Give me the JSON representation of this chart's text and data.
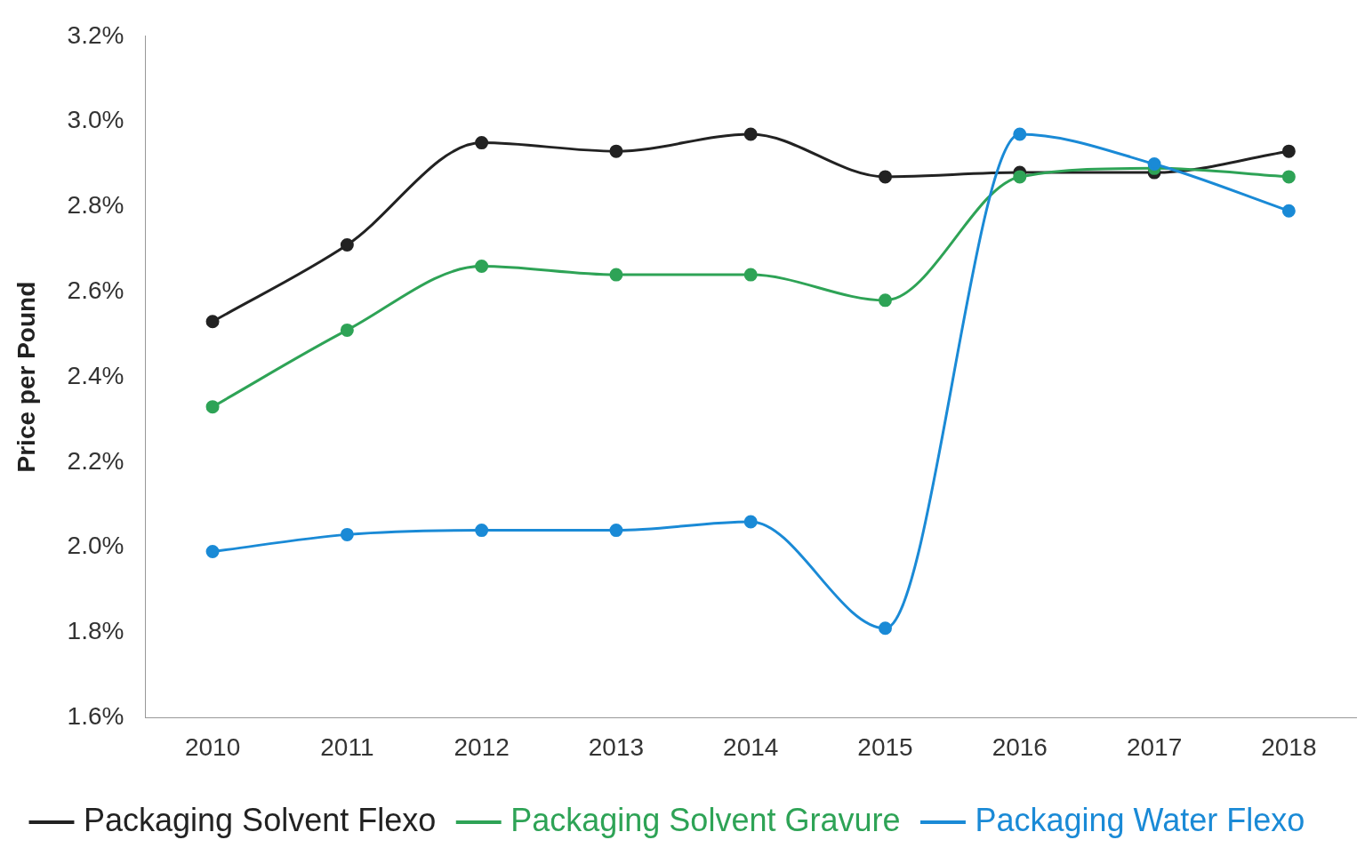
{
  "chart_data": {
    "type": "line",
    "ylabel": "Price per Pound",
    "categories": [
      "2010",
      "2011",
      "2012",
      "2013",
      "2014",
      "2015",
      "2016",
      "2017",
      "2018"
    ],
    "series": [
      {
        "name": "Packaging Solvent Flexo",
        "color": "#222222",
        "values": [
          2.53,
          2.71,
          2.95,
          2.93,
          2.97,
          2.87,
          2.88,
          2.88,
          2.93
        ]
      },
      {
        "name": "Packaging Solvent Gravure",
        "color": "#2ea356",
        "values": [
          2.33,
          2.51,
          2.66,
          2.64,
          2.64,
          2.58,
          2.87,
          2.89,
          2.87
        ]
      },
      {
        "name": "Packaging Water Flexo",
        "color": "#1a8ad6",
        "values": [
          1.99,
          2.03,
          2.04,
          2.04,
          2.06,
          1.81,
          2.97,
          2.9,
          2.79
        ]
      }
    ],
    "ylim": [
      1.6,
      3.2
    ],
    "yticks": [
      {
        "value": 1.6,
        "label": "1.6%"
      },
      {
        "value": 1.8,
        "label": "1.8%"
      },
      {
        "value": 2.0,
        "label": "2.0%"
      },
      {
        "value": 2.2,
        "label": "2.2%"
      },
      {
        "value": 2.4,
        "label": "2.4%"
      },
      {
        "value": 2.6,
        "label": "2.6%"
      },
      {
        "value": 2.8,
        "label": "2.8%"
      },
      {
        "value": 3.0,
        "label": "3.0%"
      },
      {
        "value": 3.2,
        "label": "3.2%"
      }
    ],
    "grid": false,
    "legend": "bottom",
    "marker": "circle",
    "line_style": "solid"
  }
}
